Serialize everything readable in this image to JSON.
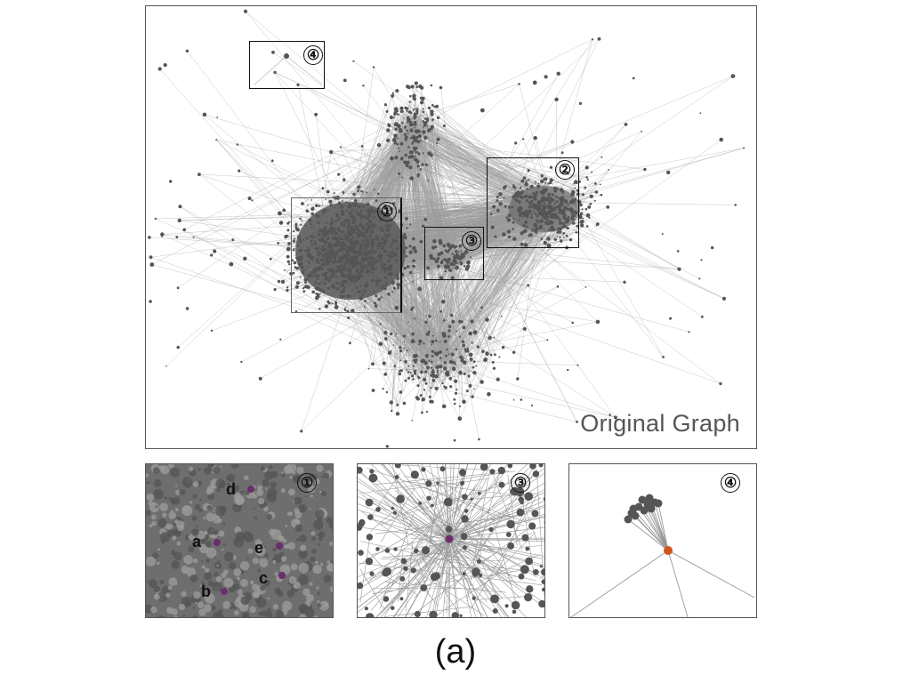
{
  "main_graph": {
    "title": "Original Graph",
    "regions": [
      {
        "id": "1",
        "label": "①"
      },
      {
        "id": "2",
        "label": "②"
      },
      {
        "id": "3",
        "label": "③"
      },
      {
        "id": "4",
        "label": "④"
      }
    ]
  },
  "insets": [
    {
      "id": "1",
      "label": "①",
      "nodes": [
        "a",
        "b",
        "c",
        "d",
        "e"
      ],
      "highlight_color": "#6b2d6b"
    },
    {
      "id": "3",
      "label": "③",
      "highlight_color": "#6b2d6b"
    },
    {
      "id": "4",
      "label": "④",
      "highlight_color": "#d2551e"
    }
  ],
  "caption": "(a)",
  "colors": {
    "node": "#555555",
    "edge": "#9a9a9a",
    "purple": "#6b2d6b",
    "orange": "#d2551e"
  }
}
